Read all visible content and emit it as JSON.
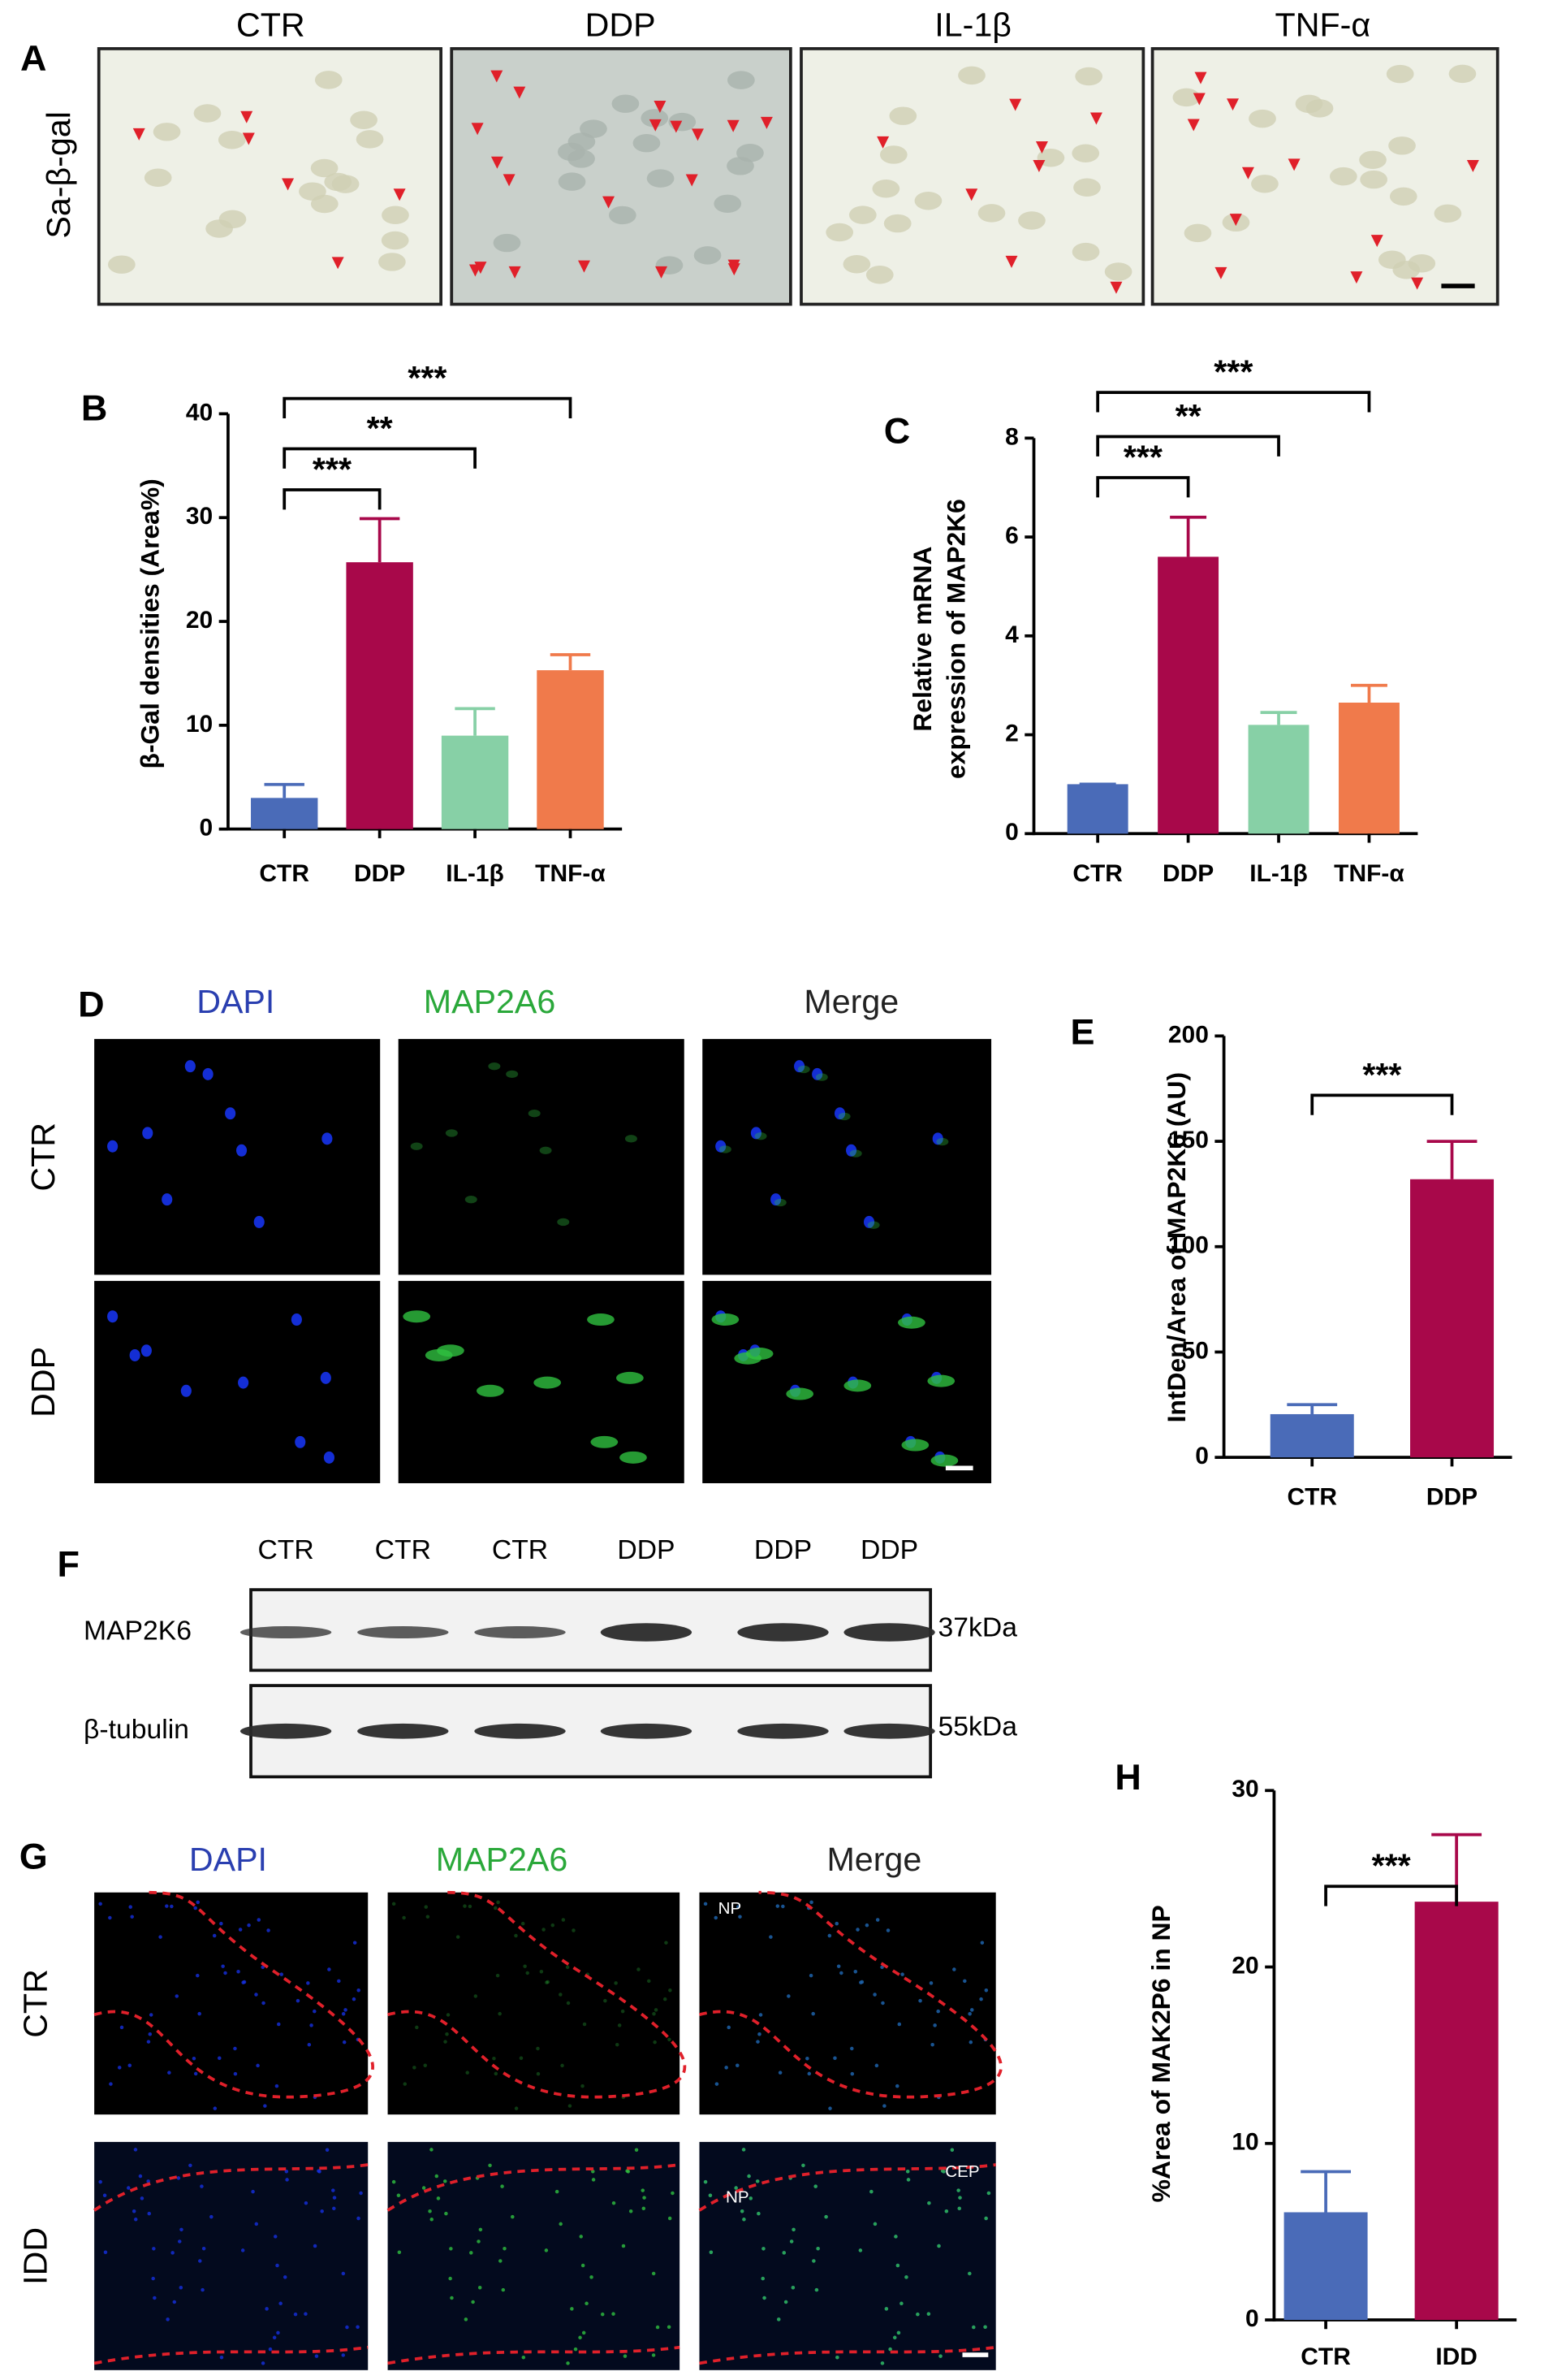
{
  "panel_a": {
    "label": "A",
    "columns": [
      "CTR",
      "DDP",
      "IL-1β",
      "TNF-α"
    ],
    "row_label": "Sa-β-gal"
  },
  "panel_d": {
    "label": "D",
    "columns": [
      "DAPI",
      "MAP2A6",
      "Merge"
    ],
    "rows": [
      "CTR",
      "DDP"
    ]
  },
  "panel_f": {
    "label": "F",
    "lanes": [
      "CTR",
      "CTR",
      "CTR",
      "DDP",
      "DDP",
      "DDP"
    ],
    "rows": [
      {
        "label": "MAP2K6",
        "size": "37kDa"
      },
      {
        "label": "β-tubulin",
        "size": "55kDa"
      }
    ]
  },
  "panel_g": {
    "label": "G",
    "columns": [
      "DAPI",
      "MAP2A6",
      "Merge"
    ],
    "rows": [
      "CTR",
      "IDD"
    ],
    "annotations": [
      "NP",
      "NP",
      "CEP"
    ]
  },
  "chart_data": [
    {
      "type": "bar",
      "panel_label": "B",
      "y_label": "β-Gal densities (Area%)",
      "categories": [
        "CTR",
        "DDP",
        "IL-1β",
        "TNF-α"
      ],
      "values": [
        3,
        25.7,
        9,
        15.3
      ],
      "errors": [
        1.3,
        4.2,
        2.6,
        1.5
      ],
      "colors": [
        "#4a6bb8",
        "#a8084a",
        "#87d0a6",
        "#f07a4b"
      ],
      "ylim": [
        0,
        40
      ],
      "yticks": [
        0,
        10,
        20,
        30,
        40
      ],
      "comparisons": [
        {
          "groups": [
            "CTR",
            "DDP"
          ],
          "label": "***"
        },
        {
          "groups": [
            "CTR",
            "IL-1β"
          ],
          "label": "**"
        },
        {
          "groups": [
            "CTR",
            "TNF-α"
          ],
          "label": "***"
        }
      ]
    },
    {
      "type": "bar",
      "panel_label": "C",
      "y_label": [
        "Relative mRNA",
        "expression of MAP2K6"
      ],
      "categories": [
        "CTR",
        "DDP",
        "IL-1β",
        "TNF-α"
      ],
      "values": [
        1,
        5.6,
        2.2,
        2.65
      ],
      "errors": [
        0,
        0.8,
        0.25,
        0.35
      ],
      "colors": [
        "#4a6bb8",
        "#a8084a",
        "#87d0a6",
        "#f07a4b"
      ],
      "ylim": [
        0,
        8
      ],
      "yticks": [
        0,
        2,
        4,
        6,
        8
      ],
      "comparisons": [
        {
          "groups": [
            "CTR",
            "DDP"
          ],
          "label": "***"
        },
        {
          "groups": [
            "CTR",
            "IL-1β"
          ],
          "label": "**"
        },
        {
          "groups": [
            "CTR",
            "TNF-α"
          ],
          "label": "***"
        }
      ]
    },
    {
      "type": "bar",
      "panel_label": "E",
      "y_label": "IntDen/Area of MAP2K6 (AU)",
      "categories": [
        "CTR",
        "DDP"
      ],
      "values": [
        20.5,
        132
      ],
      "errors": [
        4.5,
        18
      ],
      "colors": [
        "#4a6bb8",
        "#a8084a"
      ],
      "ylim": [
        0,
        200
      ],
      "yticks": [
        0,
        50,
        100,
        150,
        200
      ],
      "comparisons": [
        {
          "groups": [
            "CTR",
            "DDP"
          ],
          "label": "***"
        }
      ]
    },
    {
      "type": "bar",
      "panel_label": "H",
      "y_label": "%Area of MAK2P6 in NP",
      "categories": [
        "CTR",
        "IDD"
      ],
      "values": [
        6.1,
        23.7
      ],
      "errors": [
        2.3,
        3.8
      ],
      "colors": [
        "#4a6bb8",
        "#a8084a"
      ],
      "ylim": [
        0,
        30
      ],
      "yticks": [
        0,
        10,
        20,
        30
      ],
      "comparisons": [
        {
          "groups": [
            "CTR",
            "IDD"
          ],
          "label": "***"
        }
      ]
    }
  ]
}
